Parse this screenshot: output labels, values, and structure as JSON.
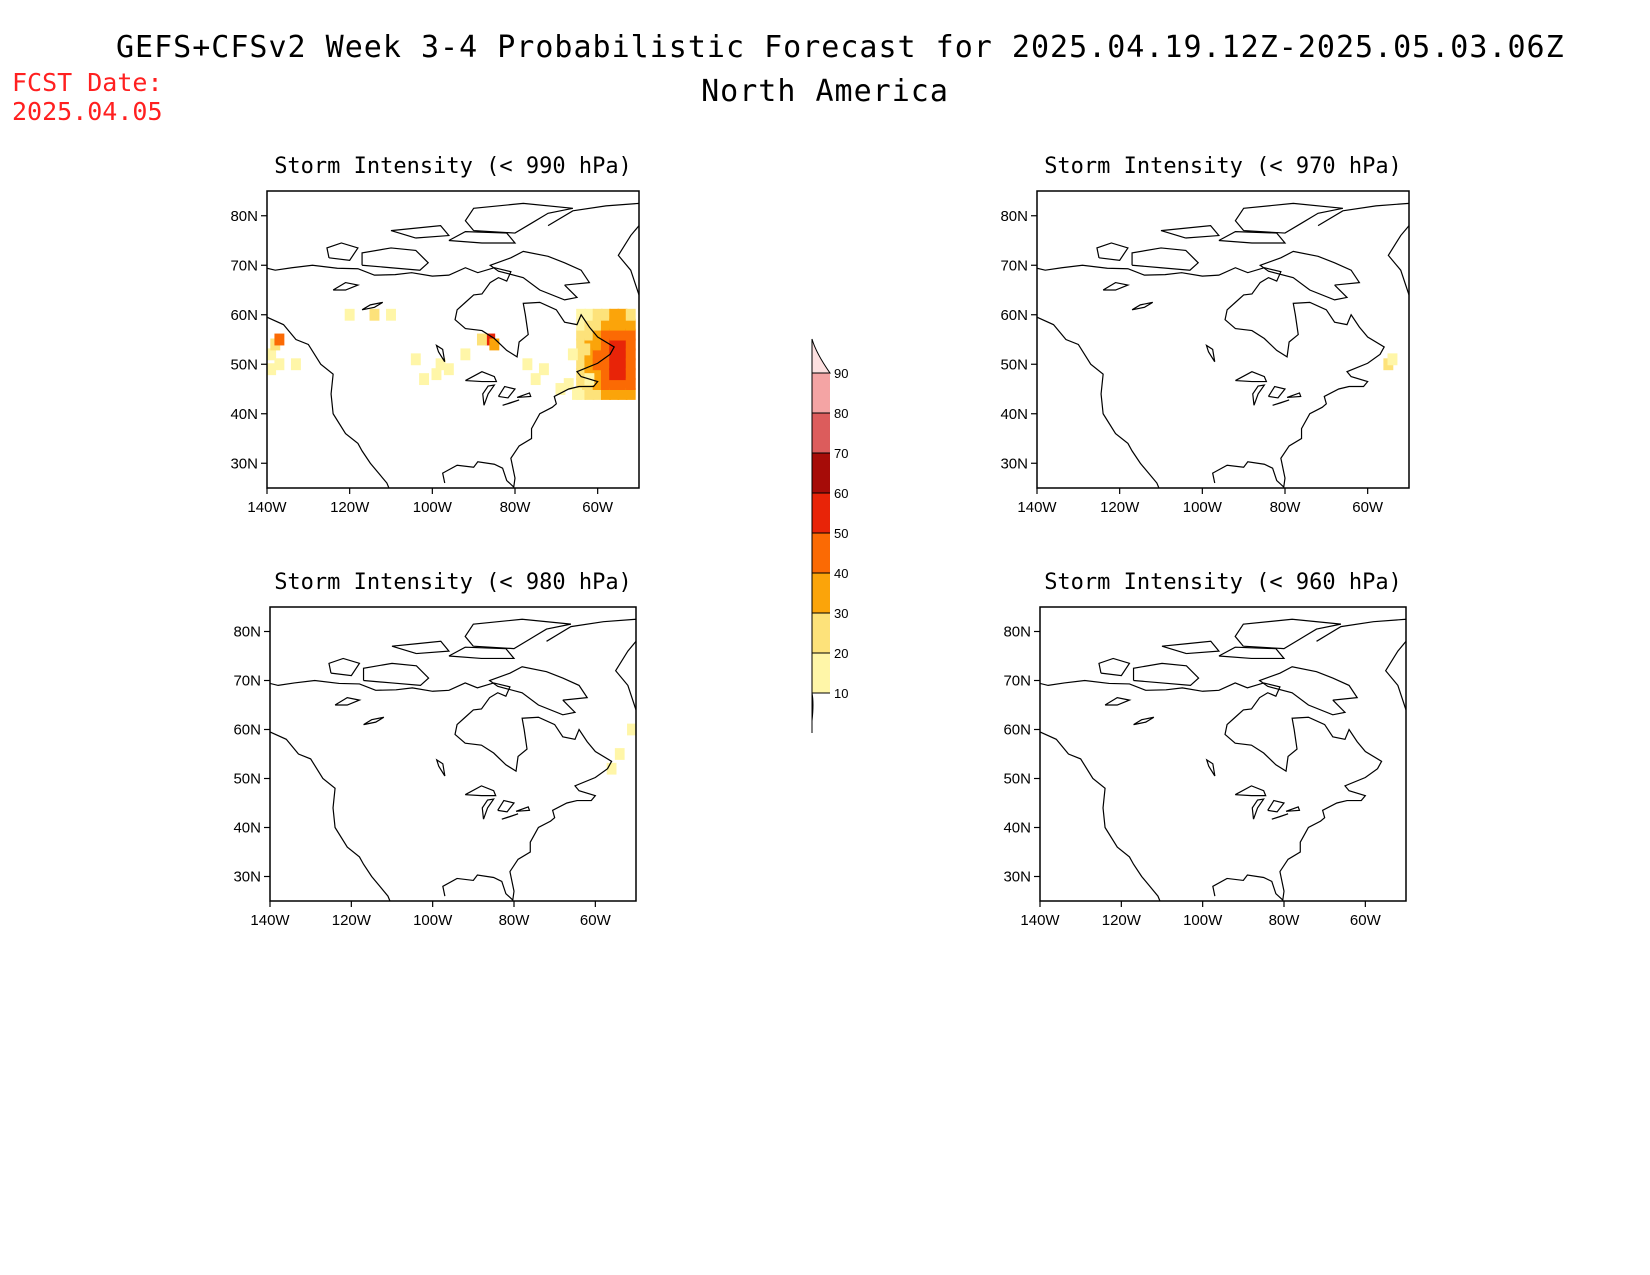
{
  "header": {
    "title": "GEFS+CFSv2 Week 3-4 Probabilistic Forecast for 2025.04.19.12Z-2025.05.03.06Z",
    "subtitle": "North America",
    "fcst_label": "FCST Date:",
    "fcst_date": "2025.04.05"
  },
  "colors": {
    "bins": [
      "#fff6a8",
      "#fde27a",
      "#fba40a",
      "#fb6a04",
      "#e82408",
      "#a60c08",
      "#dc5c5c",
      "#f4a4a4",
      "#fde0e0"
    ]
  },
  "colorbar": {
    "labels": [
      "10",
      "20",
      "30",
      "40",
      "50",
      "60",
      "70",
      "80",
      "90"
    ]
  },
  "panels": [
    {
      "title": "Storm Intensity (< 990 hPa)",
      "activity": "high"
    },
    {
      "title": "Storm Intensity (< 970 hPa)",
      "activity": "trace"
    },
    {
      "title": "Storm Intensity (< 980 hPa)",
      "activity": "low"
    },
    {
      "title": "Storm Intensity (< 960 hPa)",
      "activity": "none"
    }
  ],
  "axes": {
    "lat_labels": [
      "80N",
      "70N",
      "60N",
      "50N",
      "40N",
      "30N"
    ],
    "lon_labels": [
      "140W",
      "120W",
      "100W",
      "80W",
      "60W"
    ]
  }
}
